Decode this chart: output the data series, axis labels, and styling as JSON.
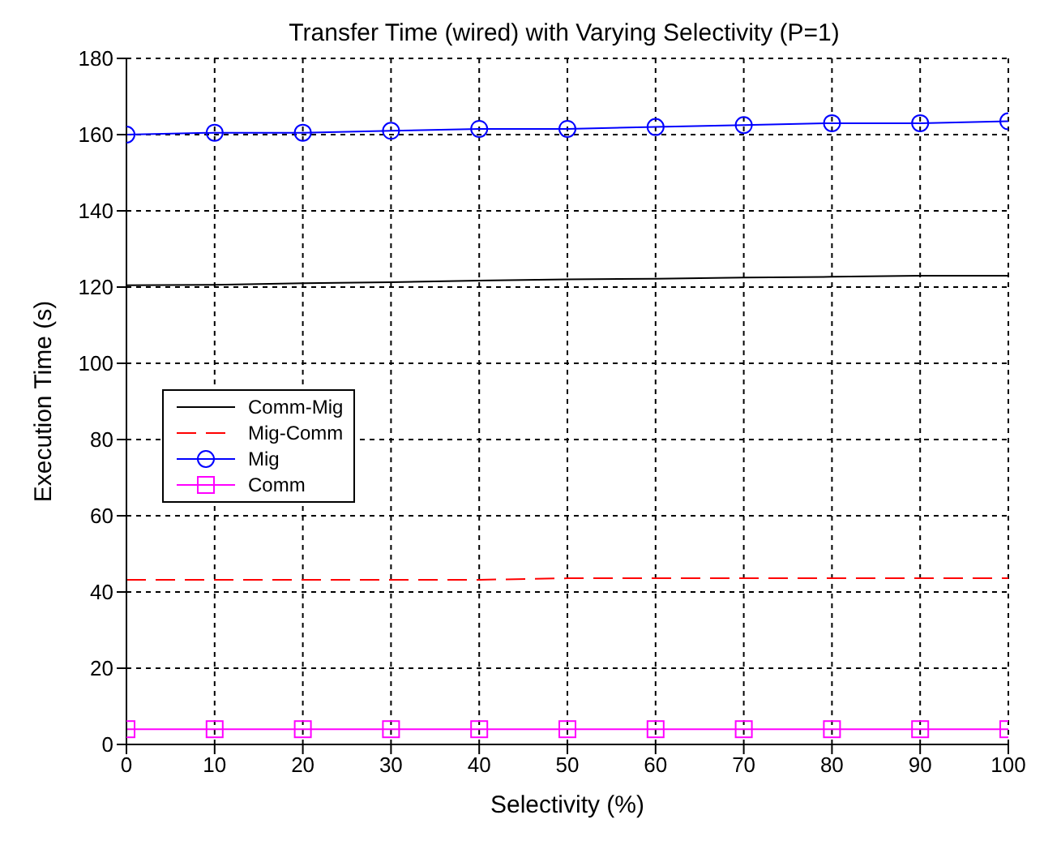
{
  "chart_data": {
    "type": "line",
    "title": "Transfer Time (wired) with Varying Selectivity (P=1)",
    "xlabel": "Selectivity (%)",
    "ylabel": "Execution Time (s)",
    "x": [
      0,
      10,
      20,
      30,
      40,
      50,
      60,
      70,
      80,
      90,
      100
    ],
    "series": [
      {
        "name": "Comm-Mig",
        "color": "#000000",
        "marker": "none",
        "line_style": "solid",
        "values": [
          120.5,
          120.6,
          121,
          121.3,
          121.7,
          122,
          122.2,
          122.5,
          122.7,
          123,
          123
        ]
      },
      {
        "name": "Mig-Comm",
        "color": "#ff0000",
        "marker": "none",
        "line_style": "dashed",
        "values": [
          43.2,
          43.2,
          43.2,
          43.2,
          43.2,
          43.6,
          43.6,
          43.6,
          43.6,
          43.6,
          43.6
        ]
      },
      {
        "name": "Mig",
        "color": "#0000ff",
        "marker": "circle",
        "line_style": "solid",
        "values": [
          160,
          160.5,
          160.5,
          161,
          161.5,
          161.5,
          162,
          162.5,
          163,
          163,
          163.5
        ]
      },
      {
        "name": "Comm",
        "color": "#ff00ff",
        "marker": "square",
        "line_style": "solid",
        "values": [
          4,
          4,
          4,
          4,
          4,
          4,
          4,
          4,
          4,
          4,
          4
        ]
      }
    ],
    "xlim": [
      0,
      100
    ],
    "xticks": [
      0,
      10,
      20,
      30,
      40,
      50,
      60,
      70,
      80,
      90,
      100
    ],
    "ylim": [
      0,
      180
    ],
    "yticks": [
      0,
      20,
      40,
      60,
      80,
      100,
      120,
      140,
      160,
      180
    ],
    "grid": true,
    "legend": "left"
  }
}
